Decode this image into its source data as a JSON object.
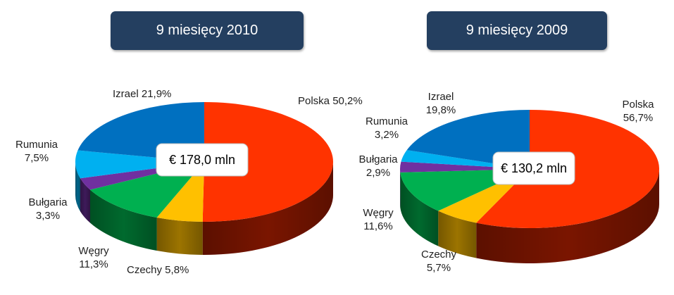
{
  "chart_data": [
    {
      "type": "pie",
      "title": "9 miesięcy 2010",
      "total": "€ 178,0 mln",
      "slices": [
        {
          "name": "Polska",
          "value": 50.2,
          "label": [
            "Polska 50,2%"
          ],
          "color": "#ff3300",
          "dark": "#7a1500"
        },
        {
          "name": "Czechy",
          "value": 5.8,
          "label": [
            "Czechy 5,8%"
          ],
          "color": "#ffc000",
          "dark": "#9c7400"
        },
        {
          "name": "Węgry",
          "value": 11.3,
          "label": [
            "Węgry",
            "11,3%"
          ],
          "color": "#00b050",
          "dark": "#006a2e"
        },
        {
          "name": "Bułgaria",
          "value": 3.3,
          "label": [
            "Bułgaria",
            "3,3%"
          ],
          "color": "#7030a0",
          "dark": "#3e1a5a"
        },
        {
          "name": "Rumunia",
          "value": 7.5,
          "label": [
            "Rumunia",
            "7,5%"
          ],
          "color": "#00b0f0",
          "dark": "#00678c"
        },
        {
          "name": "Izrael",
          "value": 21.9,
          "label": [
            "Izrael 21,9%"
          ],
          "color": "#0070c0",
          "dark": "#003d6a"
        }
      ]
    },
    {
      "type": "pie",
      "title": "9 miesięcy 2009",
      "total": "€ 130,2 mln",
      "slices": [
        {
          "name": "Polska",
          "value": 56.7,
          "label": [
            "Polska",
            "56,7%"
          ],
          "color": "#ff3300",
          "dark": "#7a1500"
        },
        {
          "name": "Czechy",
          "value": 5.7,
          "label": [
            "Czechy",
            "5,7%"
          ],
          "color": "#ffc000",
          "dark": "#9c7400"
        },
        {
          "name": "Węgry",
          "value": 11.6,
          "label": [
            "Węgry",
            "11,6%"
          ],
          "color": "#00b050",
          "dark": "#006a2e"
        },
        {
          "name": "Bułgaria",
          "value": 2.9,
          "label": [
            "Bułgaria",
            "2,9%"
          ],
          "color": "#7030a0",
          "dark": "#3e1a5a"
        },
        {
          "name": "Rumunia",
          "value": 3.2,
          "label": [
            "Rumunia",
            "3,2%"
          ],
          "color": "#00b0f0",
          "dark": "#00678c"
        },
        {
          "name": "Izrael",
          "value": 19.8,
          "label": [
            "Izrael",
            "19,8%"
          ],
          "color": "#0070c0",
          "dark": "#003d6a"
        }
      ]
    }
  ]
}
